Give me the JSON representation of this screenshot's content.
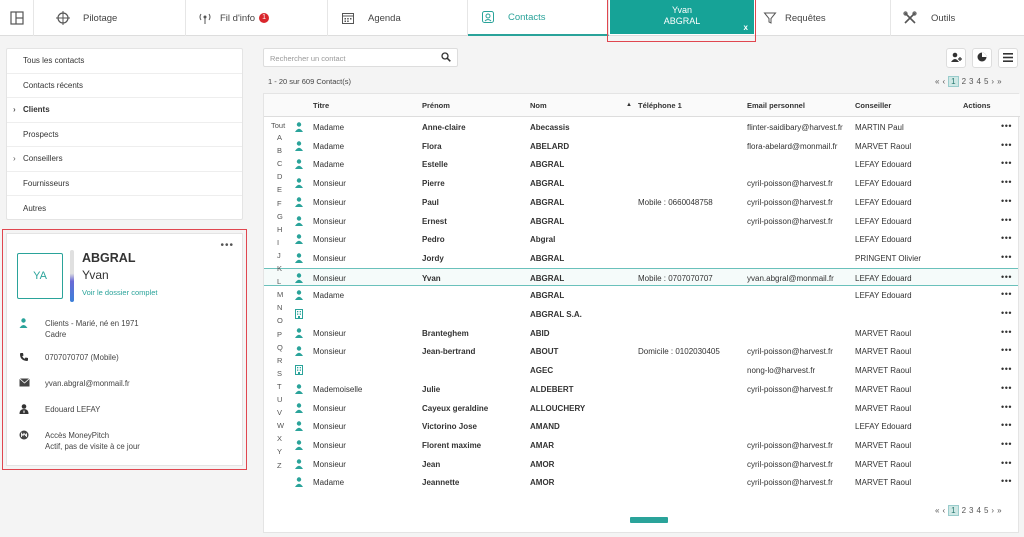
{
  "tabs": [
    {
      "label": "",
      "icon": "layout-icon"
    },
    {
      "label": "Pilotage",
      "icon": "crosshair-icon"
    },
    {
      "label": "Fil d'info",
      "icon": "antenna-icon",
      "badge": "1"
    },
    {
      "label": "Agenda",
      "icon": "calendar-icon"
    },
    {
      "label": "Contacts",
      "icon": "contact-card-icon"
    },
    {
      "label": "Requêtes",
      "icon": "filter-icon"
    },
    {
      "label": "Outils",
      "icon": "tools-icon"
    }
  ],
  "person_tab": {
    "first": "Yvan",
    "last": "ABGRAL",
    "close": "x"
  },
  "menu": [
    "Tous les contacts",
    "Contacts récents",
    "Clients",
    "Prospects",
    "Conseillers",
    "Fournisseurs",
    "Autres"
  ],
  "card": {
    "initials": "YA",
    "last": "ABGRAL",
    "first": "Yvan",
    "link": "Voir le dossier complet",
    "dots": "•••",
    "details": [
      {
        "icon": "person-icon",
        "l1": "Clients - Marié, né en 1971",
        "l2": "Cadre"
      },
      {
        "icon": "phone-icon",
        "l1": "0707070707 (Mobile)",
        "l2": ""
      },
      {
        "icon": "mail-icon",
        "l1": "yvan.abgral@monmail.fr",
        "l2": ""
      },
      {
        "icon": "advisor-icon",
        "l1": "Edouard LEFAY",
        "l2": ""
      },
      {
        "icon": "moneypitch-icon",
        "l1": "Accès MoneyPitch",
        "l2": "Actif, pas de visite à ce jour"
      }
    ]
  },
  "search": {
    "placeholder": "Rechercher un contact"
  },
  "count": "1 - 20 sur 609 Contact(s)",
  "pager": [
    "«",
    "‹",
    "1",
    "2",
    "3",
    "4",
    "5",
    "›",
    "»"
  ],
  "columns": [
    "Titre",
    "Prénom",
    "Nom",
    "Téléphone 1",
    "Email personnel",
    "Conseiller",
    "Actions"
  ],
  "sort_indicator": "▲",
  "alphabet": [
    "Tout",
    "A",
    "B",
    "C",
    "D",
    "E",
    "F",
    "G",
    "H",
    "I",
    "J",
    "K",
    "L",
    "M",
    "N",
    "O",
    "P",
    "Q",
    "R",
    "S",
    "T",
    "U",
    "V",
    "W",
    "X",
    "Y",
    "Z"
  ],
  "rows": [
    {
      "type": "person",
      "titre": "Madame",
      "prenom": "Anne-claire",
      "nom": "Abecassis",
      "tel": "",
      "email": "flinter-saidibary@harvest.fr",
      "conseiller": "MARTIN Paul"
    },
    {
      "type": "person",
      "titre": "Madame",
      "prenom": "Flora",
      "nom": "ABELARD",
      "tel": "",
      "email": "flora-abelard@monmail.fr",
      "conseiller": "MARVET Raoul"
    },
    {
      "type": "person",
      "titre": "Madame",
      "prenom": "Estelle",
      "nom": "ABGRAL",
      "tel": "",
      "email": "",
      "conseiller": "LEFAY Edouard"
    },
    {
      "type": "person",
      "titre": "Monsieur",
      "prenom": "Pierre",
      "nom": "ABGRAL",
      "tel": "",
      "email": "cyril-poisson@harvest.fr",
      "conseiller": "LEFAY Edouard"
    },
    {
      "type": "person",
      "titre": "Monsieur",
      "prenom": "Paul",
      "nom": "ABGRAL",
      "tel": "Mobile : 0660048758",
      "email": "cyril-poisson@harvest.fr",
      "conseiller": "LEFAY Edouard"
    },
    {
      "type": "person",
      "titre": "Monsieur",
      "prenom": "Ernest",
      "nom": "ABGRAL",
      "tel": "",
      "email": "cyril-poisson@harvest.fr",
      "conseiller": "LEFAY Edouard"
    },
    {
      "type": "person",
      "titre": "Monsieur",
      "prenom": "Pedro",
      "nom": "Abgral",
      "tel": "",
      "email": "",
      "conseiller": "LEFAY Edouard"
    },
    {
      "type": "person",
      "titre": "Monsieur",
      "prenom": "Jordy",
      "nom": "ABGRAL",
      "tel": "",
      "email": "",
      "conseiller": "PRINGENT Olivier"
    },
    {
      "type": "person",
      "titre": "Monsieur",
      "prenom": "Yvan",
      "nom": "ABGRAL",
      "tel": "Mobile : 0707070707",
      "email": "yvan.abgral@monmail.fr",
      "conseiller": "LEFAY Edouard",
      "selected": true
    },
    {
      "type": "person",
      "titre": "Madame",
      "prenom": "",
      "nom": "ABGRAL",
      "tel": "",
      "email": "",
      "conseiller": "LEFAY Edouard"
    },
    {
      "type": "company",
      "titre": "",
      "prenom": "",
      "nom": "ABGRAL S.A.",
      "tel": "",
      "email": "",
      "conseiller": ""
    },
    {
      "type": "person",
      "titre": "Monsieur",
      "prenom": "Branteghem",
      "nom": "ABID",
      "tel": "",
      "email": "",
      "conseiller": "MARVET Raoul"
    },
    {
      "type": "person",
      "titre": "Monsieur",
      "prenom": "Jean-bertrand",
      "nom": "ABOUT",
      "tel": "Domicile : 0102030405",
      "email": "cyril-poisson@harvest.fr",
      "conseiller": "MARVET Raoul"
    },
    {
      "type": "company",
      "titre": "",
      "prenom": "",
      "nom": "AGEC",
      "tel": "",
      "email": "nong-lo@harvest.fr",
      "conseiller": "MARVET Raoul"
    },
    {
      "type": "person",
      "titre": "Mademoiselle",
      "prenom": "Julie",
      "nom": "ALDEBERT",
      "tel": "",
      "email": "cyril-poisson@harvest.fr",
      "conseiller": "MARVET Raoul"
    },
    {
      "type": "person",
      "titre": "Monsieur",
      "prenom": "Cayeux geraldine",
      "nom": "ALLOUCHERY",
      "tel": "",
      "email": "",
      "conseiller": "MARVET Raoul"
    },
    {
      "type": "person",
      "titre": "Monsieur",
      "prenom": "Victorino Jose",
      "nom": "AMAND",
      "tel": "",
      "email": "",
      "conseiller": "LEFAY Edouard"
    },
    {
      "type": "person",
      "titre": "Monsieur",
      "prenom": "Florent maxime",
      "nom": "AMAR",
      "tel": "",
      "email": "cyril-poisson@harvest.fr",
      "conseiller": "MARVET Raoul"
    },
    {
      "type": "person",
      "titre": "Monsieur",
      "prenom": "Jean",
      "nom": "AMOR",
      "tel": "",
      "email": "cyril-poisson@harvest.fr",
      "conseiller": "MARVET Raoul"
    },
    {
      "type": "person",
      "titre": "Madame",
      "prenom": "Jeannette",
      "nom": "AMOR",
      "tel": "",
      "email": "cyril-poisson@harvest.fr",
      "conseiller": "MARVET Raoul"
    }
  ],
  "row_action": "•••",
  "colors": {
    "accent": "#2aa39a",
    "person_tab": "#16a397",
    "annotation": "#e0464f",
    "badge": "#d9262c"
  }
}
